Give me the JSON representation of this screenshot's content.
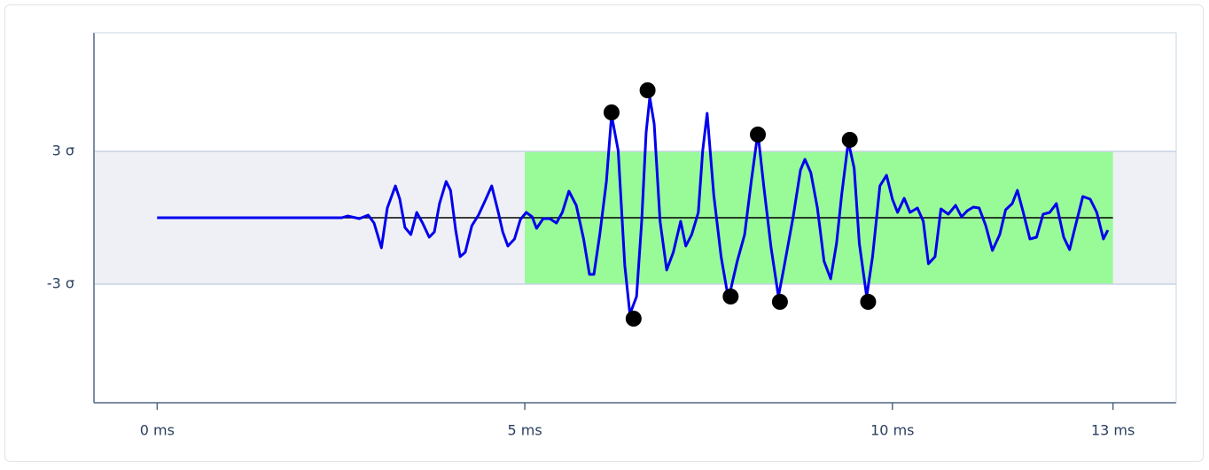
{
  "chart_data": {
    "type": "line",
    "xlim": [
      -0.86,
      13.86
    ],
    "ylim": [
      -8.36,
      8.36
    ],
    "xticks": [
      {
        "value": 0,
        "label": "0 ms"
      },
      {
        "value": 5,
        "label": "5 ms"
      },
      {
        "value": 10,
        "label": "10 ms"
      },
      {
        "value": 13,
        "label": "13 ms"
      }
    ],
    "yticks": [
      {
        "value": -3,
        "label": "-3 σ"
      },
      {
        "value": 3,
        "label": "3 σ"
      }
    ],
    "grid": true,
    "shapes": [
      {
        "kind": "hband",
        "y": [
          -3,
          3
        ],
        "color": "#eff0f5"
      },
      {
        "kind": "rect",
        "x": [
          5,
          13
        ],
        "y": [
          -3,
          3
        ],
        "color": "#98fb98"
      },
      {
        "kind": "hline",
        "x": [
          0,
          13
        ],
        "y": [
          0,
          0
        ],
        "color": "#000000"
      }
    ],
    "series": [
      {
        "type": "line",
        "color": "#0000ee",
        "x": [
          0,
          2.51,
          2.59,
          2.75,
          2.87,
          2.95,
          3.05,
          3.13,
          3.24,
          3.3,
          3.37,
          3.45,
          3.53,
          3.61,
          3.7,
          3.77,
          3.84,
          3.93,
          3.99,
          4.06,
          4.12,
          4.19,
          4.28,
          4.37,
          4.47,
          4.55,
          4.64,
          4.7,
          4.77,
          4.86,
          4.94,
          5.02,
          5.1,
          5.16,
          5.25,
          5.34,
          5.43,
          5.51,
          5.6,
          5.7,
          5.8,
          5.88,
          5.94,
          6.02,
          6.11,
          6.18,
          6.27,
          6.36,
          6.43,
          6.52,
          6.59,
          6.65,
          6.7,
          6.76,
          6.84,
          6.93,
          7.02,
          7.12,
          7.19,
          7.27,
          7.36,
          7.42,
          7.48,
          7.57,
          7.67,
          7.77,
          7.89,
          7.99,
          8.08,
          8.17,
          8.25,
          8.35,
          8.45,
          8.53,
          8.65,
          8.75,
          8.81,
          8.89,
          8.98,
          9.07,
          9.16,
          9.24,
          9.31,
          9.4,
          9.48,
          9.55,
          9.65,
          9.73,
          9.83,
          9.92,
          10.0,
          10.07,
          10.16,
          10.24,
          10.34,
          10.42,
          10.49,
          10.58,
          10.66,
          10.76,
          10.86,
          10.94,
          11.02,
          11.1,
          11.18,
          11.27,
          11.36,
          11.46,
          11.54,
          11.63,
          11.7,
          11.78,
          11.87,
          11.96,
          12.05,
          12.14,
          12.23,
          12.33,
          12.41,
          12.49,
          12.59,
          12.69,
          12.78,
          12.87,
          12.93
        ],
        "values": [
          0,
          0,
          0.08,
          -0.04,
          0.12,
          -0.24,
          -1.36,
          0.44,
          1.44,
          0.84,
          -0.44,
          -0.76,
          0.24,
          -0.24,
          -0.88,
          -0.64,
          0.64,
          1.64,
          1.24,
          -0.56,
          -1.76,
          -1.56,
          -0.36,
          0.12,
          0.84,
          1.44,
          0.24,
          -0.64,
          -1.28,
          -0.96,
          -0.08,
          0.24,
          0.04,
          -0.48,
          -0.04,
          -0.04,
          -0.24,
          0.24,
          1.2,
          0.56,
          -0.96,
          -2.56,
          -2.56,
          -0.76,
          1.64,
          4.64,
          3.04,
          -2.16,
          -4.36,
          -3.56,
          -0.16,
          3.84,
          5.44,
          4.24,
          -0.16,
          -2.36,
          -1.56,
          -0.16,
          -1.28,
          -0.76,
          0.24,
          3.04,
          4.72,
          1.04,
          -1.76,
          -3.68,
          -1.96,
          -0.76,
          1.64,
          3.84,
          1.44,
          -1.36,
          -3.56,
          -2.16,
          0.04,
          2.16,
          2.64,
          2.04,
          0.44,
          -1.96,
          -2.76,
          -1.16,
          1.04,
          3.44,
          2.24,
          -1.16,
          -3.56,
          -1.76,
          1.44,
          1.92,
          0.84,
          0.24,
          0.88,
          0.24,
          0.44,
          -0.16,
          -2.08,
          -1.76,
          0.4,
          0.16,
          0.56,
          0.04,
          0.32,
          0.48,
          0.44,
          -0.36,
          -1.48,
          -0.76,
          0.36,
          0.64,
          1.24,
          0.24,
          -0.96,
          -0.88,
          0.16,
          0.24,
          0.64,
          -0.88,
          -1.44,
          -0.36,
          0.96,
          0.84,
          0.24,
          -0.96,
          -0.56
        ]
      },
      {
        "type": "scatter",
        "color": "#000000",
        "x": [
          6.18,
          6.48,
          6.67,
          7.8,
          8.17,
          8.47,
          9.42,
          9.67
        ],
        "values": [
          4.76,
          -4.56,
          5.76,
          -3.56,
          3.76,
          -3.8,
          3.52,
          -3.8
        ]
      }
    ]
  }
}
